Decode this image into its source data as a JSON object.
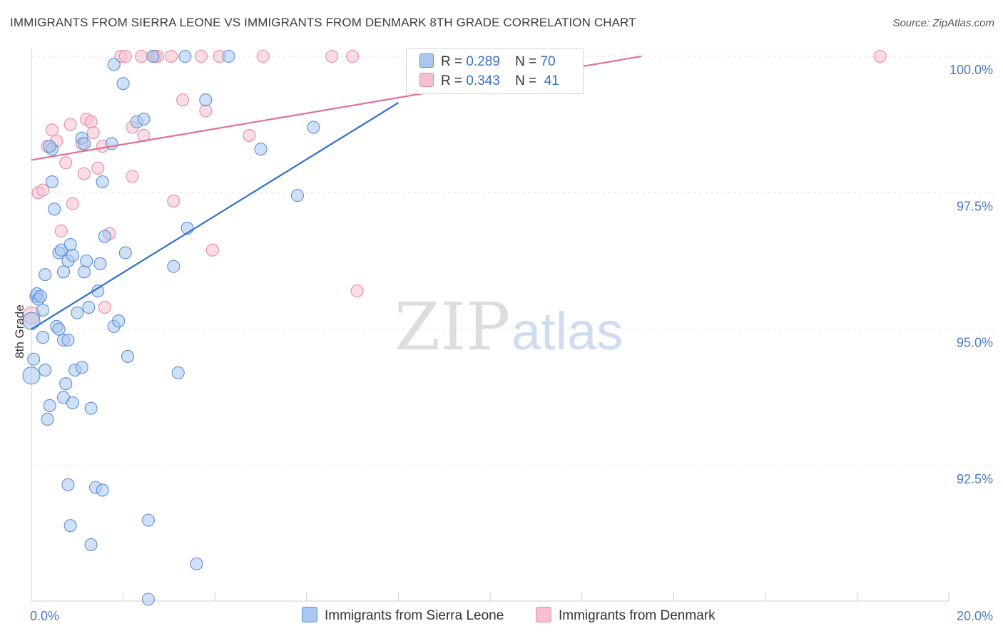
{
  "header": {
    "title": "IMMIGRANTS FROM SIERRA LEONE VS IMMIGRANTS FROM DENMARK 8TH GRADE CORRELATION CHART",
    "source": "Source: ZipAtlas.com"
  },
  "watermark": {
    "zip": "ZIP",
    "atlas": "atlas"
  },
  "legend": {
    "r_label": "R =",
    "n_label": "N =",
    "series": [
      {
        "r": "0.289",
        "n": "70"
      },
      {
        "r": "0.343",
        "n": "41"
      }
    ]
  },
  "colors": {
    "blue_fill": "#aac7ef",
    "blue_stroke": "#5b8fd6",
    "blue_line": "#2e6fcf",
    "pink_fill": "#f6bfd0",
    "pink_stroke": "#e78aa7",
    "pink_line": "#e36f96",
    "tick_text": "#4a78c7",
    "grid": "#e3e3e3"
  },
  "chart_data": {
    "type": "scatter",
    "title": "IMMIGRANTS FROM SIERRA LEONE VS IMMIGRANTS FROM DENMARK 8TH GRADE CORRELATION CHART",
    "xlabel": "",
    "ylabel": "8th Grade",
    "xlim": [
      0,
      20
    ],
    "ylim": [
      90,
      100.25
    ],
    "x_tick_labels": [
      "0.0%",
      "20.0%"
    ],
    "y_ticks": [
      92.5,
      95.0,
      97.5,
      100.0
    ],
    "y_tick_labels": [
      "92.5%",
      "95.0%",
      "97.5%",
      "100.0%"
    ],
    "grid": true,
    "series": [
      {
        "name": "Immigrants from Sierra Leone",
        "color": "blue",
        "trend": {
          "x": [
            0.0,
            8.0
          ],
          "y": [
            95.0,
            99.15
          ]
        },
        "points": [
          [
            0.0,
            95.15
          ],
          [
            0.05,
            94.45
          ],
          [
            0.1,
            95.6
          ],
          [
            0.12,
            95.65
          ],
          [
            0.15,
            95.55
          ],
          [
            0.2,
            95.6
          ],
          [
            0.25,
            95.35
          ],
          [
            0.25,
            94.85
          ],
          [
            0.3,
            94.25
          ],
          [
            0.35,
            93.35
          ],
          [
            0.4,
            93.6
          ],
          [
            0.45,
            98.3
          ],
          [
            0.45,
            97.7
          ],
          [
            0.5,
            97.2
          ],
          [
            0.55,
            95.05
          ],
          [
            0.6,
            96.4
          ],
          [
            0.65,
            96.45
          ],
          [
            0.7,
            93.75
          ],
          [
            0.75,
            94.0
          ],
          [
            0.7,
            96.05
          ],
          [
            0.7,
            94.8
          ],
          [
            0.8,
            94.8
          ],
          [
            0.8,
            96.25
          ],
          [
            0.85,
            96.55
          ],
          [
            0.9,
            93.65
          ],
          [
            0.9,
            96.35
          ],
          [
            0.95,
            94.25
          ],
          [
            1.0,
            95.3
          ],
          [
            1.1,
            94.3
          ],
          [
            1.1,
            98.5
          ],
          [
            1.15,
            98.4
          ],
          [
            1.15,
            96.05
          ],
          [
            1.2,
            96.25
          ],
          [
            1.25,
            95.4
          ],
          [
            1.3,
            93.55
          ],
          [
            1.45,
            95.7
          ],
          [
            1.5,
            96.2
          ],
          [
            1.55,
            97.7
          ],
          [
            1.6,
            96.7
          ],
          [
            1.75,
            98.4
          ],
          [
            1.8,
            99.85
          ],
          [
            1.8,
            95.05
          ],
          [
            1.9,
            95.15
          ],
          [
            2.0,
            99.5
          ],
          [
            2.05,
            96.4
          ],
          [
            2.1,
            94.5
          ],
          [
            2.3,
            98.8
          ],
          [
            2.45,
            98.85
          ],
          [
            2.55,
            90.05
          ],
          [
            2.55,
            91.5
          ],
          [
            2.65,
            100.0
          ],
          [
            3.1,
            96.15
          ],
          [
            3.2,
            94.2
          ],
          [
            3.35,
            100.0
          ],
          [
            3.4,
            96.85
          ],
          [
            3.6,
            90.7
          ],
          [
            3.8,
            99.2
          ],
          [
            4.3,
            100.0
          ],
          [
            5.0,
            98.3
          ],
          [
            5.8,
            97.45
          ],
          [
            6.15,
            98.7
          ],
          [
            0.0,
            94.15
          ],
          [
            0.3,
            96.0
          ],
          [
            0.4,
            98.35
          ],
          [
            1.4,
            92.1
          ],
          [
            1.55,
            92.05
          ],
          [
            0.8,
            92.15
          ],
          [
            0.85,
            91.4
          ],
          [
            1.3,
            91.05
          ],
          [
            0.6,
            95.0
          ]
        ]
      },
      {
        "name": "Immigrants from Denmark",
        "color": "pink",
        "trend": {
          "x": [
            0.0,
            13.3
          ],
          "y": [
            98.1,
            100.0
          ]
        },
        "points": [
          [
            0.0,
            95.25
          ],
          [
            0.15,
            97.5
          ],
          [
            0.25,
            97.55
          ],
          [
            0.35,
            98.35
          ],
          [
            0.45,
            98.65
          ],
          [
            0.55,
            98.45
          ],
          [
            0.65,
            96.8
          ],
          [
            0.75,
            98.05
          ],
          [
            0.85,
            98.75
          ],
          [
            0.9,
            97.3
          ],
          [
            1.1,
            98.4
          ],
          [
            1.15,
            97.85
          ],
          [
            1.2,
            98.85
          ],
          [
            1.3,
            98.8
          ],
          [
            1.35,
            98.6
          ],
          [
            1.45,
            97.95
          ],
          [
            1.55,
            98.35
          ],
          [
            1.6,
            95.4
          ],
          [
            1.7,
            96.75
          ],
          [
            1.95,
            100.0
          ],
          [
            2.05,
            100.0
          ],
          [
            2.2,
            98.7
          ],
          [
            2.2,
            97.8
          ],
          [
            2.4,
            100.0
          ],
          [
            2.45,
            98.55
          ],
          [
            2.65,
            100.0
          ],
          [
            2.7,
            100.0
          ],
          [
            2.75,
            100.0
          ],
          [
            3.05,
            100.0
          ],
          [
            3.1,
            97.35
          ],
          [
            3.3,
            99.2
          ],
          [
            3.7,
            100.0
          ],
          [
            3.8,
            99.0
          ],
          [
            3.95,
            96.45
          ],
          [
            4.1,
            100.0
          ],
          [
            4.75,
            98.55
          ],
          [
            5.05,
            100.0
          ],
          [
            6.55,
            100.0
          ],
          [
            7.0,
            100.0
          ],
          [
            7.1,
            95.7
          ],
          [
            18.5,
            100.0
          ]
        ]
      }
    ]
  }
}
